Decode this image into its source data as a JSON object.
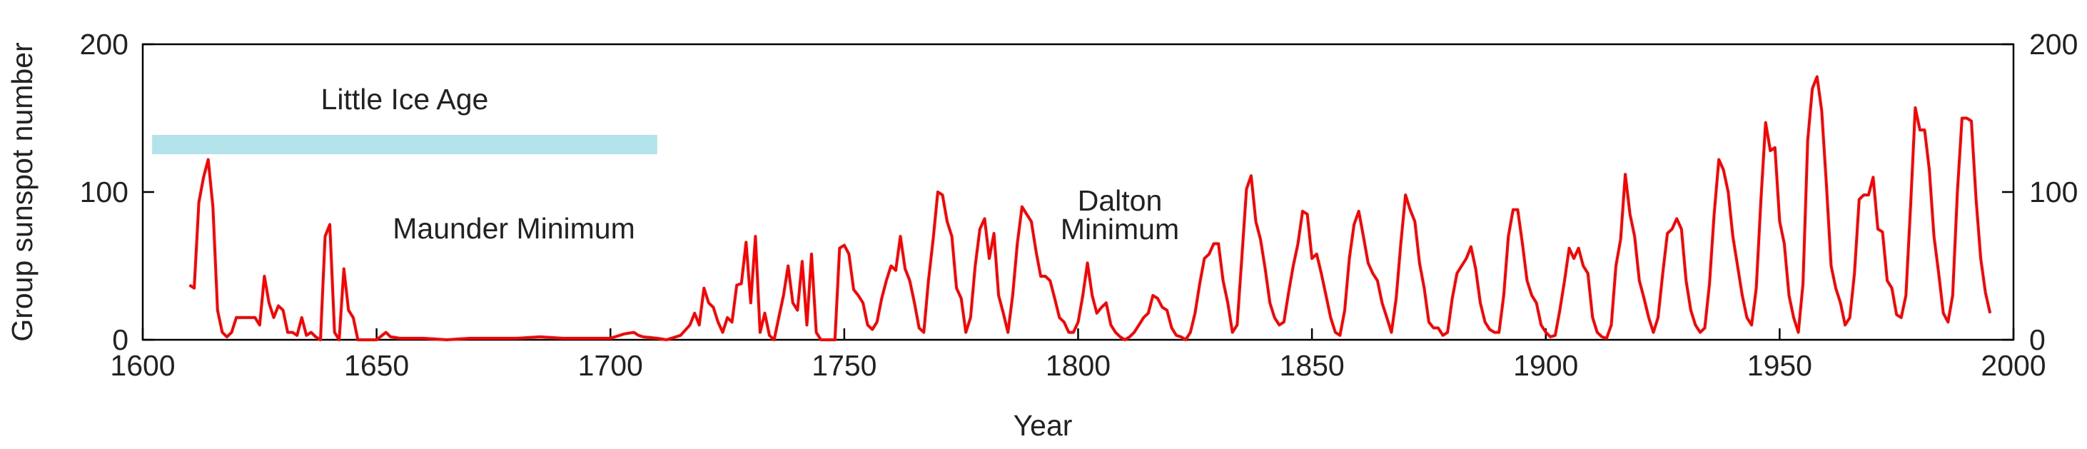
{
  "chart_data": {
    "type": "line",
    "xlabel": "Year",
    "ylabel": "Group sunspot number",
    "xlim": [
      1600,
      2000
    ],
    "xticks": [
      1600,
      1650,
      1700,
      1750,
      1800,
      1850,
      1900,
      1950,
      2000
    ],
    "ylim": [
      0,
      200
    ],
    "yticks": [
      0,
      100,
      200
    ],
    "right_axis_ticks": true,
    "grid": false,
    "spans": [
      {
        "label": "Little Ice Age",
        "x": [
          1602,
          1710
        ],
        "color": "#b3e3ea"
      }
    ],
    "annotations": [
      {
        "lines": [
          "Maunder Minimum"
        ]
      },
      {
        "lines": [
          "Dalton",
          "Minimum"
        ]
      }
    ],
    "x": [
      1610,
      1611,
      1612,
      1613,
      1614,
      1615,
      1616,
      1617,
      1618,
      1619,
      1620,
      1621,
      1622,
      1623,
      1624,
      1625,
      1626,
      1627,
      1628,
      1629,
      1630,
      1631,
      1632,
      1633,
      1634,
      1635,
      1636,
      1637,
      1638,
      1639,
      1640,
      1641,
      1642,
      1643,
      1644,
      1645,
      1646,
      1647,
      1650,
      1652,
      1653,
      1655,
      1660,
      1665,
      1670,
      1675,
      1680,
      1685,
      1690,
      1695,
      1700,
      1703,
      1705,
      1706,
      1707,
      1710,
      1712,
      1715,
      1717,
      1718,
      1719,
      1720,
      1721,
      1722,
      1723,
      1724,
      1725,
      1726,
      1727,
      1728,
      1729,
      1730,
      1731,
      1732,
      1733,
      1734,
      1735,
      1736,
      1737,
      1738,
      1739,
      1740,
      1741,
      1742,
      1743,
      1744,
      1745,
      1746,
      1748,
      1749,
      1750,
      1751,
      1752,
      1753,
      1754,
      1755,
      1756,
      1757,
      1758,
      1759,
      1760,
      1761,
      1762,
      1763,
      1764,
      1765,
      1766,
      1767,
      1768,
      1769,
      1770,
      1771,
      1772,
      1773,
      1774,
      1775,
      1776,
      1777,
      1778,
      1779,
      1780,
      1781,
      1782,
      1783,
      1784,
      1785,
      1786,
      1787,
      1788,
      1789,
      1790,
      1791,
      1792,
      1793,
      1794,
      1795,
      1796,
      1797,
      1798,
      1799,
      1800,
      1801,
      1802,
      1803,
      1804,
      1805,
      1806,
      1807,
      1808,
      1809,
      1810,
      1811,
      1812,
      1813,
      1814,
      1815,
      1816,
      1817,
      1818,
      1819,
      1820,
      1821,
      1822,
      1823,
      1824,
      1825,
      1826,
      1827,
      1828,
      1829,
      1830,
      1831,
      1832,
      1833,
      1834,
      1835,
      1836,
      1837,
      1838,
      1839,
      1840,
      1841,
      1842,
      1843,
      1844,
      1845,
      1846,
      1847,
      1848,
      1849,
      1850,
      1851,
      1852,
      1853,
      1854,
      1855,
      1856,
      1857,
      1858,
      1859,
      1860,
      1861,
      1862,
      1863,
      1864,
      1865,
      1866,
      1867,
      1868,
      1869,
      1870,
      1871,
      1872,
      1873,
      1874,
      1875,
      1876,
      1877,
      1878,
      1879,
      1880,
      1881,
      1882,
      1883,
      1884,
      1885,
      1886,
      1887,
      1888,
      1889,
      1890,
      1891,
      1892,
      1893,
      1894,
      1895,
      1896,
      1897,
      1898,
      1899,
      1900,
      1901,
      1902,
      1903,
      1904,
      1905,
      1906,
      1907,
      1908,
      1909,
      1910,
      1911,
      1912,
      1913,
      1914,
      1915,
      1916,
      1917,
      1918,
      1919,
      1920,
      1921,
      1922,
      1923,
      1924,
      1925,
      1926,
      1927,
      1928,
      1929,
      1930,
      1931,
      1932,
      1933,
      1934,
      1935,
      1936,
      1937,
      1938,
      1939,
      1940,
      1941,
      1942,
      1943,
      1944,
      1945,
      1946,
      1947,
      1948,
      1949,
      1950,
      1951,
      1952,
      1953,
      1954,
      1955,
      1956,
      1957,
      1958,
      1959,
      1960,
      1961,
      1962,
      1963,
      1964,
      1965,
      1966,
      1967,
      1968,
      1969,
      1970,
      1971,
      1972,
      1973,
      1974,
      1975,
      1976,
      1977,
      1978,
      1979,
      1980,
      1981,
      1982,
      1983,
      1984,
      1985,
      1986,
      1987,
      1988,
      1989,
      1990,
      1991,
      1992,
      1993,
      1994,
      1995
    ],
    "series": [
      {
        "color": "#ff0000",
        "values": [
          37,
          35,
          93,
          110,
          122,
          90,
          20,
          5,
          2,
          5,
          15,
          15,
          15,
          15,
          15,
          10,
          43,
          25,
          15,
          23,
          20,
          5,
          5,
          3,
          15,
          3,
          5,
          2,
          0,
          70,
          78,
          5,
          0,
          48,
          20,
          15,
          0,
          0,
          0,
          5,
          2,
          1,
          1,
          0,
          1,
          1,
          1,
          2,
          1,
          1,
          1,
          4,
          5,
          3,
          2,
          1,
          0,
          3,
          10,
          18,
          10,
          35,
          25,
          22,
          12,
          5,
          15,
          12,
          37,
          38,
          66,
          25,
          70,
          5,
          18,
          3,
          0,
          15,
          30,
          50,
          25,
          20,
          53,
          10,
          58,
          5,
          0,
          0,
          0,
          62,
          64,
          58,
          34,
          30,
          25,
          10,
          7,
          12,
          28,
          40,
          50,
          47,
          70,
          48,
          40,
          25,
          8,
          5,
          40,
          68,
          100,
          98,
          80,
          70,
          35,
          28,
          5,
          15,
          50,
          75,
          82,
          55,
          72,
          30,
          18,
          5,
          30,
          65,
          90,
          85,
          80,
          60,
          43,
          43,
          40,
          28,
          15,
          12,
          5,
          5,
          12,
          30,
          52,
          30,
          18,
          22,
          25,
          10,
          5,
          2,
          0,
          2,
          5,
          10,
          15,
          18,
          30,
          28,
          22,
          20,
          8,
          3,
          2,
          0,
          5,
          18,
          38,
          55,
          58,
          65,
          65,
          40,
          25,
          5,
          10,
          55,
          102,
          111,
          80,
          68,
          48,
          25,
          15,
          10,
          12,
          32,
          50,
          65,
          87,
          85,
          55,
          58,
          45,
          30,
          15,
          5,
          3,
          20,
          55,
          78,
          87,
          70,
          52,
          45,
          40,
          25,
          15,
          5,
          28,
          65,
          98,
          88,
          80,
          52,
          35,
          12,
          8,
          8,
          3,
          5,
          28,
          45,
          50,
          55,
          63,
          48,
          25,
          12,
          7,
          5,
          5,
          30,
          70,
          88,
          88,
          65,
          40,
          30,
          25,
          10,
          5,
          2,
          3,
          20,
          40,
          62,
          55,
          62,
          50,
          45,
          15,
          5,
          2,
          1,
          10,
          50,
          68,
          112,
          85,
          70,
          40,
          28,
          15,
          5,
          15,
          45,
          72,
          75,
          82,
          75,
          40,
          20,
          10,
          5,
          8,
          38,
          85,
          122,
          115,
          100,
          70,
          50,
          30,
          15,
          10,
          35,
          95,
          147,
          128,
          130,
          80,
          65,
          30,
          15,
          5,
          38,
          135,
          170,
          178,
          155,
          105,
          50,
          35,
          25,
          10,
          15,
          45,
          95,
          98,
          98,
          110,
          75,
          73,
          40,
          35,
          17,
          15,
          30,
          90,
          157,
          142,
          142,
          115,
          70,
          45,
          18,
          12,
          30,
          100,
          150,
          150,
          148,
          95,
          55,
          32,
          18
        ]
      }
    ]
  }
}
